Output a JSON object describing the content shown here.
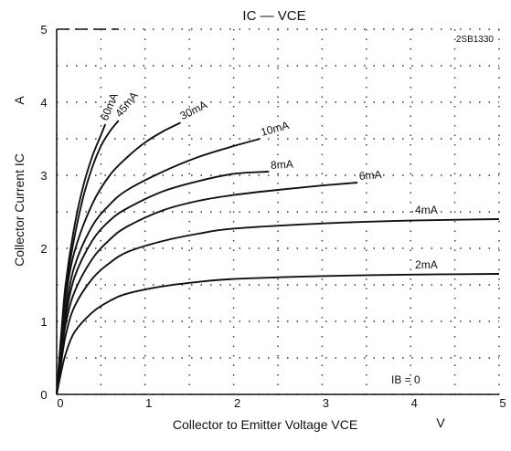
{
  "chart_data": {
    "type": "line",
    "title": "IC — VCE",
    "part_number": "2SB1330",
    "xlabel": "Collector to Emitter Voltage VCE",
    "xunit": "V",
    "ylabel": "Collector Current IC",
    "yunit": "A",
    "xlim": [
      0,
      5
    ],
    "ylim": [
      0,
      5
    ],
    "x_ticks": [
      "0",
      "1",
      "2",
      "3",
      "4",
      "5"
    ],
    "y_ticks": [
      "0",
      "1",
      "2",
      "3",
      "4",
      "5"
    ],
    "grid": "dotted",
    "bottom_annotation": "IB = 0",
    "series": [
      {
        "name": "60mA",
        "points": [
          [
            0,
            0
          ],
          [
            0.05,
            0.8
          ],
          [
            0.1,
            1.5
          ],
          [
            0.2,
            2.3
          ],
          [
            0.3,
            2.85
          ],
          [
            0.4,
            3.25
          ],
          [
            0.5,
            3.55
          ],
          [
            0.55,
            3.7
          ]
        ]
      },
      {
        "name": "45mA",
        "points": [
          [
            0,
            0
          ],
          [
            0.05,
            0.75
          ],
          [
            0.1,
            1.4
          ],
          [
            0.2,
            2.15
          ],
          [
            0.3,
            2.7
          ],
          [
            0.4,
            3.1
          ],
          [
            0.5,
            3.4
          ],
          [
            0.6,
            3.6
          ],
          [
            0.7,
            3.75
          ]
        ]
      },
      {
        "name": "30mA",
        "points": [
          [
            0,
            0
          ],
          [
            0.05,
            0.7
          ],
          [
            0.1,
            1.3
          ],
          [
            0.2,
            1.95
          ],
          [
            0.4,
            2.6
          ],
          [
            0.6,
            3.0
          ],
          [
            0.8,
            3.25
          ],
          [
            1.0,
            3.45
          ],
          [
            1.2,
            3.6
          ],
          [
            1.4,
            3.72
          ]
        ]
      },
      {
        "name": "10mA",
        "points": [
          [
            0,
            0
          ],
          [
            0.05,
            0.62
          ],
          [
            0.1,
            1.15
          ],
          [
            0.2,
            1.75
          ],
          [
            0.4,
            2.3
          ],
          [
            0.6,
            2.6
          ],
          [
            0.8,
            2.8
          ],
          [
            1.2,
            3.05
          ],
          [
            1.6,
            3.25
          ],
          [
            2.0,
            3.4
          ],
          [
            2.3,
            3.5
          ]
        ]
      },
      {
        "name": "8mA",
        "points": [
          [
            0,
            0
          ],
          [
            0.05,
            0.58
          ],
          [
            0.1,
            1.05
          ],
          [
            0.2,
            1.6
          ],
          [
            0.4,
            2.1
          ],
          [
            0.6,
            2.38
          ],
          [
            0.8,
            2.55
          ],
          [
            1.2,
            2.78
          ],
          [
            1.6,
            2.92
          ],
          [
            2.0,
            3.02
          ],
          [
            2.4,
            3.05
          ]
        ]
      },
      {
        "name": "6mA",
        "points": [
          [
            0,
            0
          ],
          [
            0.05,
            0.5
          ],
          [
            0.1,
            0.95
          ],
          [
            0.2,
            1.4
          ],
          [
            0.4,
            1.85
          ],
          [
            0.6,
            2.12
          ],
          [
            0.8,
            2.3
          ],
          [
            1.2,
            2.52
          ],
          [
            1.6,
            2.65
          ],
          [
            2.0,
            2.73
          ],
          [
            2.5,
            2.8
          ],
          [
            3.0,
            2.86
          ],
          [
            3.4,
            2.9
          ]
        ]
      },
      {
        "name": "4mA",
        "points": [
          [
            0,
            0
          ],
          [
            0.05,
            0.42
          ],
          [
            0.1,
            0.8
          ],
          [
            0.2,
            1.2
          ],
          [
            0.4,
            1.58
          ],
          [
            0.6,
            1.8
          ],
          [
            0.8,
            1.95
          ],
          [
            1.2,
            2.1
          ],
          [
            1.6,
            2.2
          ],
          [
            2.0,
            2.27
          ],
          [
            3.0,
            2.34
          ],
          [
            4.0,
            2.38
          ],
          [
            5.0,
            2.4
          ]
        ]
      },
      {
        "name": "2mA",
        "points": [
          [
            0,
            0
          ],
          [
            0.05,
            0.3
          ],
          [
            0.1,
            0.55
          ],
          [
            0.2,
            0.85
          ],
          [
            0.4,
            1.12
          ],
          [
            0.6,
            1.28
          ],
          [
            0.8,
            1.38
          ],
          [
            1.2,
            1.48
          ],
          [
            1.6,
            1.54
          ],
          [
            2.0,
            1.58
          ],
          [
            3.0,
            1.62
          ],
          [
            4.0,
            1.64
          ],
          [
            5.0,
            1.65
          ]
        ]
      }
    ]
  }
}
